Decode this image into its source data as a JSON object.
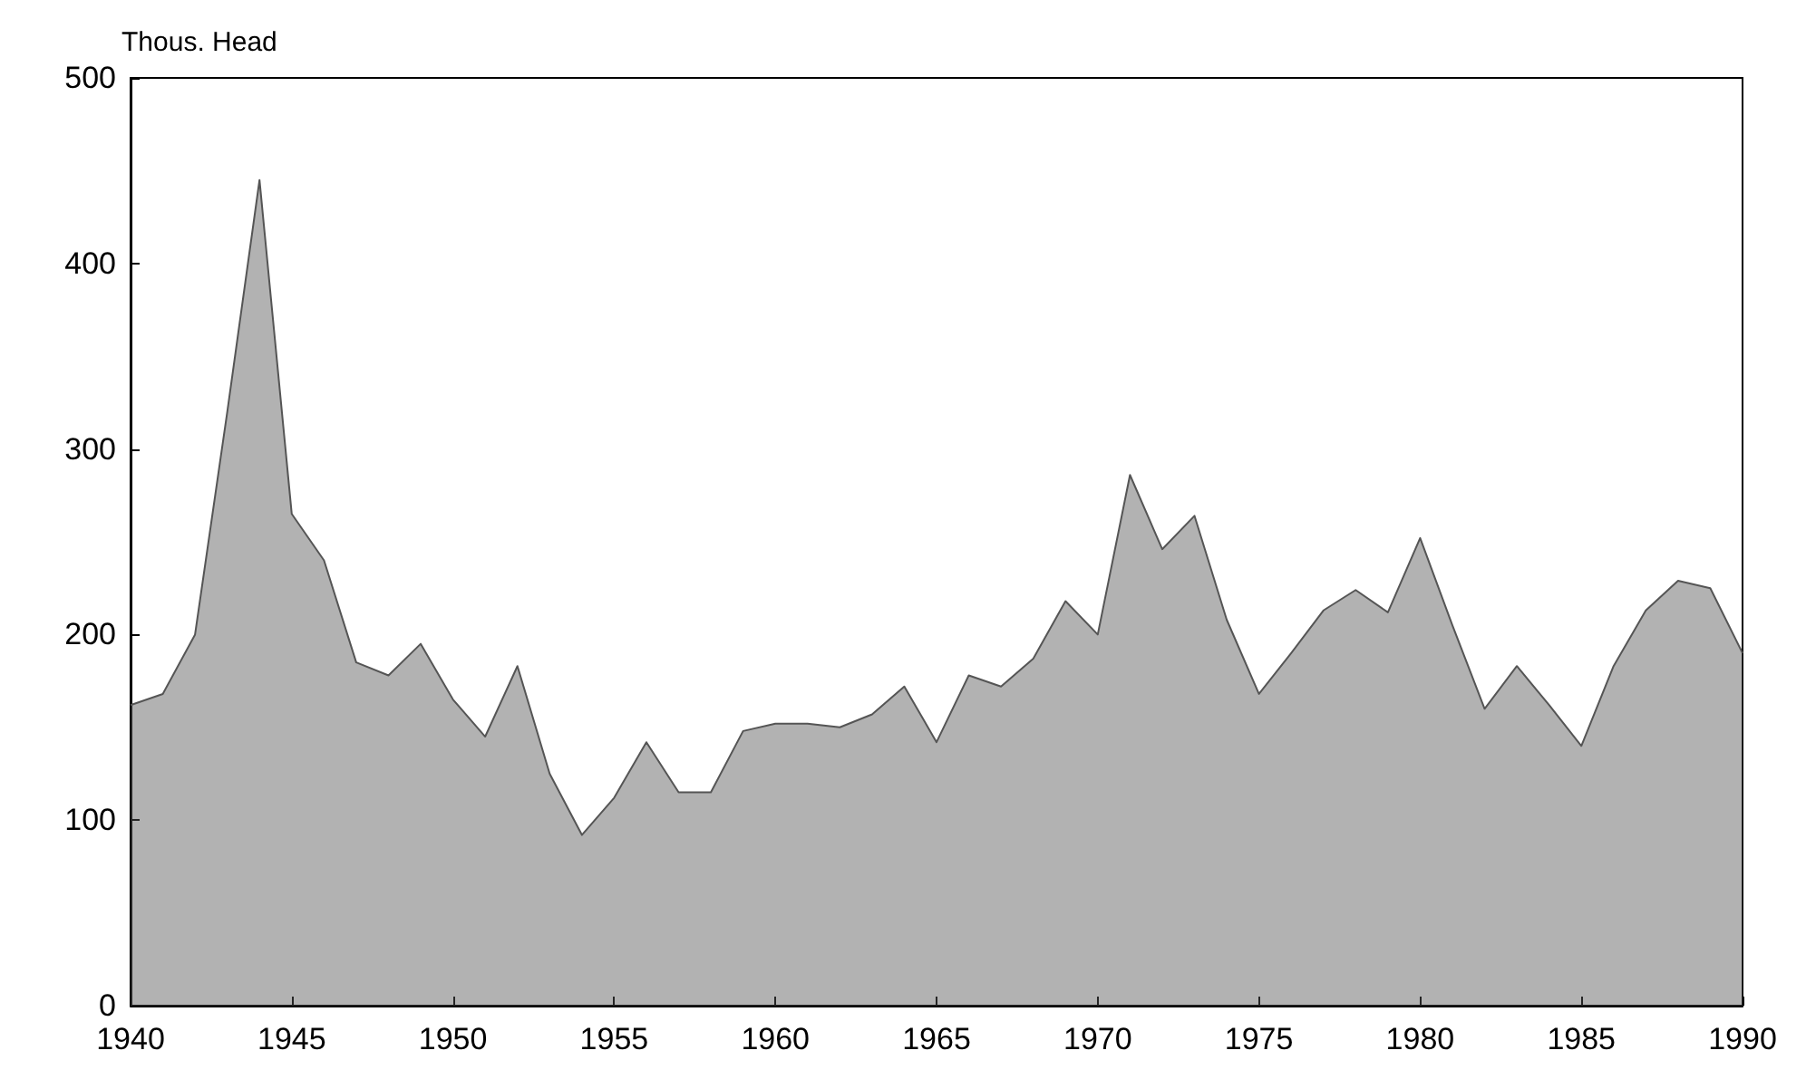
{
  "chart_data": {
    "type": "area",
    "ylabel": "Thous. Head",
    "x": [
      1940,
      1941,
      1942,
      1943,
      1944,
      1945,
      1946,
      1947,
      1948,
      1949,
      1950,
      1951,
      1952,
      1953,
      1954,
      1955,
      1956,
      1957,
      1958,
      1959,
      1960,
      1961,
      1962,
      1963,
      1964,
      1965,
      1966,
      1967,
      1968,
      1969,
      1970,
      1971,
      1972,
      1973,
      1974,
      1975,
      1976,
      1977,
      1978,
      1979,
      1980,
      1981,
      1982,
      1983,
      1984,
      1985,
      1986,
      1987,
      1988,
      1989,
      1990
    ],
    "values": [
      162,
      168,
      200,
      320,
      445,
      265,
      240,
      185,
      178,
      195,
      165,
      145,
      183,
      125,
      92,
      112,
      142,
      115,
      115,
      148,
      152,
      152,
      150,
      157,
      172,
      142,
      178,
      172,
      187,
      218,
      200,
      286,
      246,
      264,
      208,
      168,
      190,
      213,
      224,
      212,
      252,
      205,
      160,
      183,
      162,
      140,
      183,
      213,
      229,
      225,
      190
    ],
    "color": "#555555",
    "xlim": [
      1940,
      1990
    ],
    "xticks": [
      1940,
      1945,
      1950,
      1955,
      1960,
      1965,
      1970,
      1975,
      1980,
      1985,
      1990
    ],
    "ylim": [
      0,
      500
    ],
    "yticks": [
      0,
      100,
      200,
      300,
      400,
      500
    ],
    "grid": false,
    "marker": "none",
    "line_style": "solid"
  }
}
